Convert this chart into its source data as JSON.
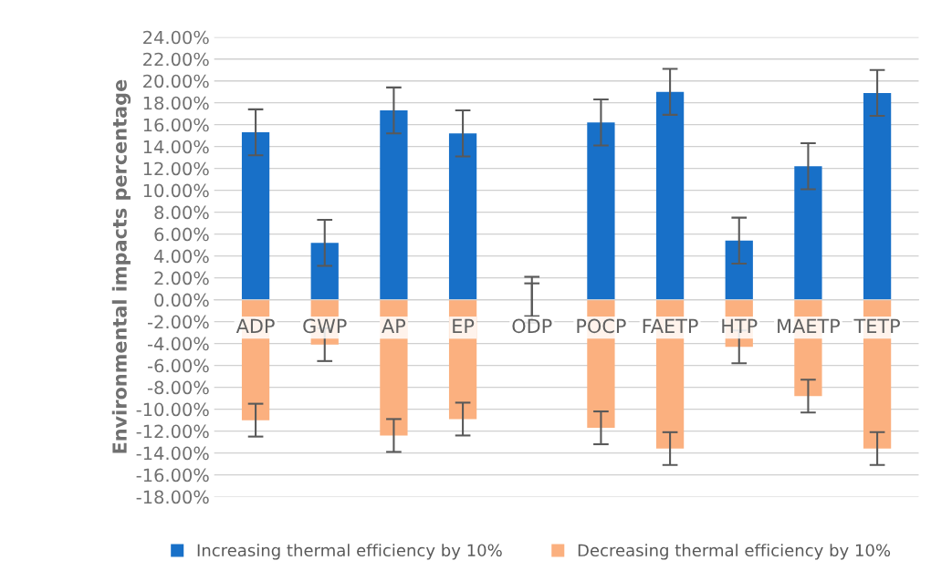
{
  "chart_data": {
    "type": "bar",
    "ylabel": "Environmental impacts percentage",
    "categories": [
      "ADP",
      "GWP",
      "AP",
      "EP",
      "ODP",
      "POCP",
      "FAETP",
      "HTP",
      "MAETP",
      "TETP"
    ],
    "series": [
      {
        "name": "Increasing thermal efficiency by 10%",
        "color": "#1870c8",
        "values": [
          15.3,
          5.2,
          17.3,
          15.2,
          0,
          16.2,
          19.0,
          5.4,
          12.2,
          18.9
        ],
        "errors": [
          2.1,
          2.1,
          2.1,
          2.1,
          2.1,
          2.1,
          2.1,
          2.1,
          2.1,
          2.1
        ]
      },
      {
        "name": "Decreasing thermal efficiency by 10%",
        "color": "#fbb07f",
        "values": [
          -11.0,
          -4.1,
          -12.4,
          -10.9,
          0,
          -11.7,
          -13.6,
          -4.3,
          -8.8,
          -13.6
        ],
        "errors": [
          1.5,
          1.5,
          1.5,
          1.5,
          1.5,
          1.5,
          1.5,
          1.5,
          1.5,
          1.5
        ]
      }
    ],
    "ylim": [
      -18,
      24
    ],
    "yticks": [
      {
        "value": -18,
        "label": "-18.00%"
      },
      {
        "value": -16,
        "label": "-16.00%"
      },
      {
        "value": -14,
        "label": "-14.00%"
      },
      {
        "value": -12,
        "label": "-12.00%"
      },
      {
        "value": -10,
        "label": "-10.00%"
      },
      {
        "value": -8,
        "label": "-8.00%"
      },
      {
        "value": -6,
        "label": "-6.00%"
      },
      {
        "value": -4,
        "label": "-4.00%"
      },
      {
        "value": -2,
        "label": "-2.00%"
      },
      {
        "value": 0,
        "label": "0.00%"
      },
      {
        "value": 2,
        "label": "2.00%"
      },
      {
        "value": 4,
        "label": "4.00%"
      },
      {
        "value": 6,
        "label": "6.00%"
      },
      {
        "value": 8,
        "label": "8.00%"
      },
      {
        "value": 10,
        "label": "10.00%"
      },
      {
        "value": 12,
        "label": "12.00%"
      },
      {
        "value": 14,
        "label": "14.00%"
      },
      {
        "value": 16,
        "label": "16.00%"
      },
      {
        "value": 18,
        "label": "18.00%"
      },
      {
        "value": 20,
        "label": "20.00%"
      },
      {
        "value": 22,
        "label": "22.00%"
      },
      {
        "value": 24,
        "label": "24.00%"
      }
    ],
    "grid": "y",
    "legend": "bottom",
    "stacked": true
  }
}
